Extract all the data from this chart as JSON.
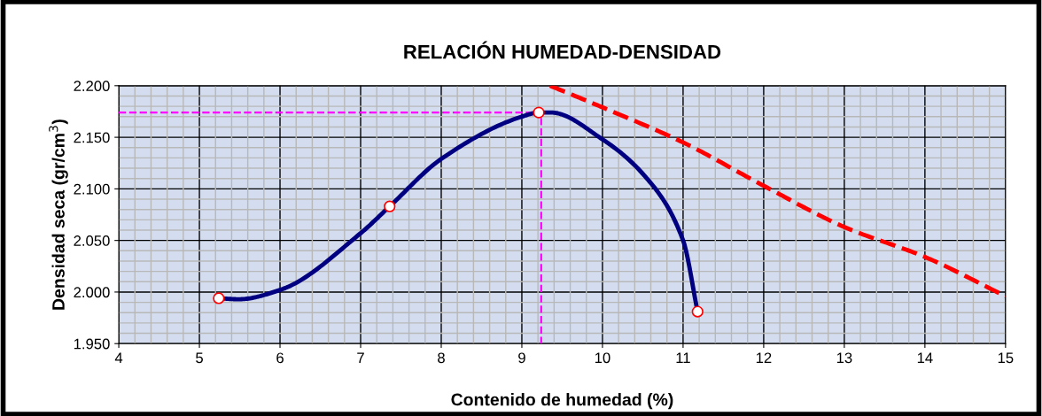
{
  "chart_data": {
    "type": "line",
    "title": "RELACIÓN HUMEDAD-DENSIDAD",
    "xlabel": "Contenido de humedad (%)",
    "ylabel": "Densidad seca (gr/cm$^{3}$)",
    "xlim": [
      4,
      15
    ],
    "xticks": [
      4,
      5,
      6,
      7,
      8,
      9,
      10,
      11,
      12,
      13,
      14,
      15
    ],
    "ylim": [
      1.95,
      2.2
    ],
    "yticks": [
      {
        "value": 1.95,
        "label": "1.950"
      },
      {
        "value": 2.0,
        "label": "2.000"
      },
      {
        "value": 2.05,
        "label": "2.050"
      },
      {
        "value": 2.1,
        "label": "2.100"
      },
      {
        "value": 2.15,
        "label": "2.150"
      },
      {
        "value": 2.2,
        "label": "2.200"
      }
    ],
    "grid": true,
    "legend": false,
    "series": [
      {
        "color": "#ff00ff",
        "line_style": "dashed",
        "marker": "none",
        "x": [
          4,
          9.24,
          9.24
        ],
        "values": [
          2.174,
          2.174,
          1.95
        ]
      },
      {
        "color": "#ff0000",
        "line_style": "dashed",
        "marker": "none",
        "x": [
          9.35,
          10,
          11,
          12,
          13,
          14,
          15
        ],
        "values": [
          2.2,
          2.179,
          2.145,
          2.103,
          2.063,
          2.034,
          1.996
        ]
      },
      {
        "color": "#000080",
        "line_style": "solid",
        "marker": "none",
        "x": [
          5.24,
          5.49,
          6.0,
          7.0,
          7.36,
          8.0,
          9.0,
          9.21,
          9.36,
          10.0,
          10.53,
          11.0,
          11.18
        ],
        "values": [
          1.994,
          1.993,
          2.002,
          2.057,
          2.083,
          2.129,
          2.17,
          2.174,
          2.174,
          2.148,
          2.112,
          2.05,
          1.981
        ]
      },
      {
        "type": "scatter",
        "color": "#ff0000",
        "marker": "circle",
        "x": [
          5.24,
          7.36,
          9.21,
          11.18
        ],
        "values": [
          1.994,
          2.083,
          2.174,
          1.981
        ]
      }
    ]
  }
}
